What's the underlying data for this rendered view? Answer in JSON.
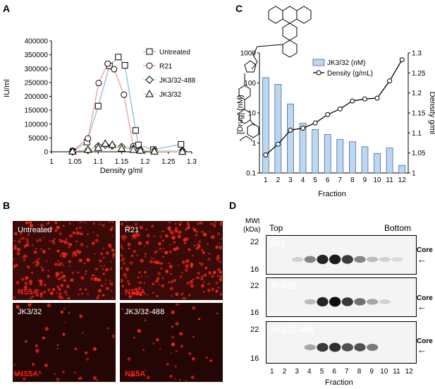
{
  "panels": {
    "A": "A",
    "B": "B",
    "C": "C",
    "D": "D"
  },
  "chart_data": [
    {
      "type": "line",
      "panel": "A",
      "xlabel": "Density g/ml",
      "ylabel": "IU/ml",
      "xlim": [
        1,
        1.3
      ],
      "ylim": [
        0,
        400000
      ],
      "x_ticks": [
        "1",
        "1.05",
        "1.1",
        "1.15",
        "1.2",
        "1.25",
        "1.3"
      ],
      "y_ticks": [
        "0",
        "50000",
        "100000",
        "150000",
        "200000",
        "250000",
        "300000",
        "350000",
        "400000"
      ],
      "legend_position": "top-right",
      "series": [
        {
          "name": "Untreated",
          "marker": "square",
          "color": "#9dc3e6",
          "x": [
            1.046,
            1.076,
            1.1,
            1.124,
            1.143,
            1.157,
            1.18,
            1.186,
            1.218,
            1.277
          ],
          "y": [
            2000,
            35000,
            165000,
            310000,
            342000,
            312000,
            77000,
            25000,
            8000,
            27000
          ]
        },
        {
          "name": "R21",
          "marker": "circle",
          "color": "#f4a7a0",
          "x": [
            1.045,
            1.078,
            1.101,
            1.12,
            1.134,
            1.155,
            1.175,
            1.19,
            1.22,
            1.28
          ],
          "y": [
            3000,
            48000,
            248000,
            318000,
            298000,
            206000,
            20000,
            6000,
            2000,
            3000
          ]
        },
        {
          "name": "JK3/32-488",
          "marker": "diamond",
          "color": "#a9d18e",
          "x": [
            1.045,
            1.078,
            1.1,
            1.115,
            1.13,
            1.15,
            1.175,
            1.19,
            1.22,
            1.28
          ],
          "y": [
            1000,
            6000,
            20000,
            25000,
            22000,
            18000,
            12000,
            6000,
            3000,
            2000
          ]
        },
        {
          "name": "JK3/32",
          "marker": "triangle",
          "color": "#f8cbad",
          "x": [
            1.045,
            1.078,
            1.1,
            1.115,
            1.13,
            1.15,
            1.175,
            1.19,
            1.22,
            1.28
          ],
          "y": [
            2000,
            8000,
            15000,
            30000,
            26000,
            12000,
            8000,
            5000,
            2000,
            1000
          ]
        }
      ]
    },
    {
      "type": "bar",
      "panel": "C",
      "xlabel": "Fraction",
      "ylabel": "[Drug] (nM)",
      "y2label": "Density g/ml",
      "categories": [
        "1",
        "2",
        "3",
        "4",
        "5",
        "6",
        "7",
        "8",
        "9",
        "10",
        "11",
        "12"
      ],
      "ylim": [
        0.1,
        1000
      ],
      "y_scale": "log",
      "y_ticks": [
        "0.1",
        "1",
        "10",
        "100",
        "1000"
      ],
      "y2lim": [
        1,
        1.3
      ],
      "y2_ticks": [
        "1",
        "1.05",
        "1.1",
        "1.15",
        "1.2",
        "1.25",
        "1.3"
      ],
      "legend_position": "top-center",
      "series": [
        {
          "name": "JK3/32 (nM)",
          "kind": "bar",
          "axis": "left",
          "color": "#bdd7ee",
          "values": [
            150,
            90,
            20,
            4.5,
            2.8,
            1.9,
            1.3,
            1.1,
            0.75,
            0.45,
            0.68,
            0.18
          ]
        },
        {
          "name": "Density (g/mL)",
          "kind": "line",
          "axis": "right",
          "color": "#000000",
          "values": [
            1.045,
            1.072,
            1.107,
            1.112,
            1.125,
            1.146,
            1.16,
            1.18,
            1.185,
            1.187,
            1.23,
            1.283
          ]
        }
      ]
    }
  ],
  "micrographs": {
    "stain": "NS5A",
    "labels": [
      "Untreated",
      "R21",
      "JK3/32",
      "JK3/32-488"
    ]
  },
  "blot": {
    "mwt_label": "MWt",
    "kda_label": "(kDa)",
    "top_label": "Top",
    "bottom_label": "Bottom",
    "core_label": "Core",
    "marker_22": "22",
    "marker_16": "16",
    "strips": [
      "R21",
      "JK3/32",
      "JK3/32-488"
    ],
    "lanes": [
      "1",
      "2",
      "3",
      "4",
      "5",
      "6",
      "7",
      "8",
      "9",
      "10",
      "11",
      "12"
    ],
    "xlabel": "Fraction",
    "band_intensities": [
      [
        0,
        0,
        0.1,
        0.45,
        0.9,
        0.95,
        0.8,
        0.45,
        0.2,
        0.1,
        0.05,
        0
      ],
      [
        0,
        0,
        0,
        0.2,
        0.9,
        1.0,
        0.8,
        0.55,
        0.3,
        0.1,
        0,
        0
      ],
      [
        0,
        0,
        0,
        0.3,
        0.8,
        0.85,
        0.7,
        0.7,
        0.5,
        0,
        0,
        0
      ]
    ]
  }
}
